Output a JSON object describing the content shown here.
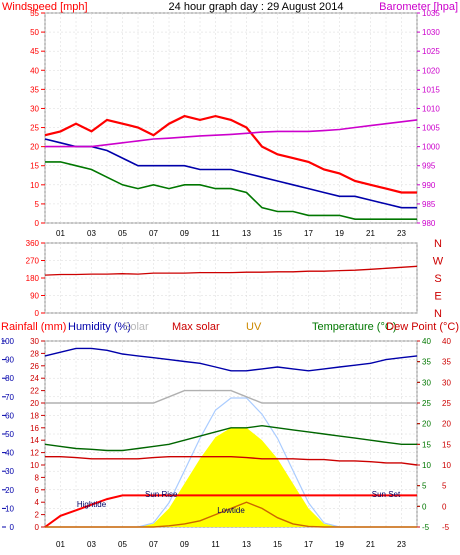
{
  "header": {
    "title": "24 hour graph day : 29 August 2014",
    "left_label": "Windspeed [mph]",
    "right_label": "Barometer [hpa]"
  },
  "x_ticks": [
    "01",
    "03",
    "05",
    "07",
    "09",
    "11",
    "13",
    "15",
    "17",
    "19",
    "21",
    "23"
  ],
  "colors": {
    "wind": "#ff0000",
    "avg_wind": "#0000aa",
    "wind_alt": "#007700",
    "barometer": "#cc00cc",
    "direction": "#cc0000",
    "rain": "#ff0000",
    "humidity": "#0000aa",
    "solar": "#b0b0b0",
    "max_solar": "#aaccff",
    "uv": "#cc6600",
    "temp": "#006600",
    "dew": "#cc0000",
    "solar_fill": "#ffff00",
    "rain_area": "#ff0000"
  },
  "chart_data": [
    {
      "type": "line",
      "title": "24 hour graph day : 29 August 2014",
      "ylabel": "Windspeed [mph]",
      "ylabel_right": "Barometer [hpa]",
      "ylim": [
        0,
        55
      ],
      "ylim_right": [
        980,
        1035
      ],
      "yticks": [
        0,
        5,
        10,
        15,
        20,
        25,
        30,
        35,
        40,
        45,
        50,
        55
      ],
      "yticks_right": [
        980,
        985,
        990,
        995,
        1000,
        1005,
        1010,
        1015,
        1020,
        1025,
        1030,
        1035
      ],
      "x": [
        0,
        1,
        2,
        3,
        4,
        5,
        6,
        7,
        8,
        9,
        10,
        11,
        12,
        13,
        14,
        15,
        16,
        17,
        18,
        19,
        20,
        21,
        22,
        23,
        24
      ],
      "series": [
        {
          "values": [
            23,
            24,
            26,
            24,
            27,
            26,
            25,
            23,
            26,
            28,
            27,
            28,
            27,
            25,
            20,
            18,
            17,
            16,
            14,
            13,
            11,
            10,
            9,
            8,
            8
          ]
        },
        {
          "values": [
            22,
            21,
            20,
            20,
            19,
            17,
            15,
            15,
            15,
            15,
            14,
            14,
            14,
            13,
            12,
            11,
            10,
            9,
            8,
            7,
            7,
            6,
            5,
            4,
            4
          ]
        },
        {
          "values": [
            16,
            16,
            15,
            14,
            12,
            10,
            9,
            10,
            9,
            10,
            10,
            9,
            9,
            8,
            4,
            3,
            3,
            2,
            2,
            2,
            1,
            1,
            1,
            1,
            1
          ]
        },
        {
          "values": [
            1000,
            1000,
            1000,
            1000,
            1000.5,
            1001,
            1001.5,
            1002,
            1002.2,
            1002.5,
            1002.8,
            1003,
            1003.2,
            1003.5,
            1003.8,
            1004,
            1004,
            1004,
            1004.2,
            1004.5,
            1005,
            1005.5,
            1006,
            1006.5,
            1007
          ]
        }
      ]
    },
    {
      "type": "line",
      "ylim": [
        0,
        360
      ],
      "yticks": [
        0,
        90,
        180,
        270,
        360
      ],
      "compass": [
        "N",
        "W",
        "S",
        "E",
        "N"
      ],
      "x": [
        0,
        1,
        2,
        3,
        4,
        5,
        6,
        7,
        8,
        9,
        10,
        11,
        12,
        13,
        14,
        15,
        16,
        17,
        18,
        19,
        20,
        21,
        22,
        23,
        24
      ],
      "series": [
        {
          "values": [
            195,
            198,
            198,
            200,
            200,
            202,
            200,
            205,
            205,
            205,
            208,
            208,
            208,
            210,
            210,
            212,
            212,
            215,
            215,
            218,
            220,
            225,
            230,
            235,
            240
          ]
        }
      ]
    },
    {
      "type": "line",
      "legend": [
        "Rainfall (mm)",
        "Humidity (%)",
        "Solar",
        "Max solar",
        "UV",
        "Temperature (°C)",
        "Dew Point (°C)"
      ],
      "ylim_rain": [
        0,
        100
      ],
      "yticks_rain": [
        0,
        10,
        20,
        30,
        40,
        50,
        60,
        70,
        80,
        90,
        100
      ],
      "ylim_humidity": [
        0,
        30
      ],
      "yticks_humidity": [
        0,
        2,
        4,
        6,
        8,
        10,
        12,
        14,
        16,
        18,
        20,
        22,
        24,
        26,
        28,
        30
      ],
      "ylim_temp": [
        -5,
        40
      ],
      "yticks_temp": [
        -5,
        0,
        5,
        10,
        15,
        20,
        25,
        30,
        35,
        40
      ],
      "yticks_dew": [
        -5,
        0,
        5,
        10,
        15,
        20,
        25,
        30,
        35,
        40
      ],
      "x": [
        0,
        1,
        2,
        3,
        4,
        5,
        6,
        7,
        8,
        9,
        10,
        11,
        12,
        13,
        14,
        15,
        16,
        17,
        18,
        19,
        20,
        21,
        22,
        23,
        24
      ],
      "series": [
        {
          "name": "Rainfall (mm)",
          "values": [
            0,
            6,
            9,
            12,
            15,
            17,
            17,
            17,
            17,
            17,
            17,
            17,
            17,
            17,
            17,
            17,
            17,
            17,
            17,
            17,
            17,
            17,
            17,
            17,
            17
          ]
        },
        {
          "name": "Humidity (%)",
          "values": [
            92,
            94,
            96,
            96,
            95,
            93,
            92,
            91,
            90,
            89,
            88,
            86,
            84,
            84,
            85,
            86,
            85,
            84,
            85,
            86,
            87,
            88,
            90,
            91,
            92
          ]
        },
        {
          "name": "Solar",
          "values": [
            20,
            20,
            20,
            20,
            20,
            20,
            20,
            20,
            21,
            22,
            22,
            22,
            22,
            21,
            20,
            20,
            20,
            20,
            20,
            20,
            20,
            20,
            20,
            20,
            20
          ]
        },
        {
          "name": "Max solar",
          "values": [
            0,
            0,
            0,
            0,
            0,
            0,
            0,
            0.5,
            3,
            7,
            11,
            14.5,
            16,
            16,
            14,
            11,
            7,
            3,
            0.5,
            0,
            0,
            0,
            0,
            0,
            0
          ]
        },
        {
          "name": "UV",
          "values": [
            0,
            0,
            0,
            0,
            0,
            0,
            0,
            0,
            0.2,
            0.5,
            1,
            2,
            3,
            4,
            3,
            1.5,
            0.5,
            0.1,
            0,
            0,
            0,
            0,
            0,
            0,
            0
          ]
        },
        {
          "name": "Temperature (°C)",
          "values": [
            15,
            14.5,
            14,
            13.8,
            13.5,
            13.5,
            14,
            14.5,
            15,
            16,
            17,
            18,
            19,
            19,
            19.5,
            19,
            18.5,
            18,
            17.5,
            17,
            16.5,
            16,
            15.5,
            15,
            15
          ]
        },
        {
          "name": "Dew Point (°C)",
          "values": [
            12,
            12,
            11.8,
            11.5,
            11.5,
            11.5,
            11.5,
            11.8,
            12,
            12,
            12,
            12,
            12,
            11.8,
            11.5,
            11.5,
            11.5,
            11.3,
            11.3,
            11,
            11,
            10.8,
            10.5,
            10.5,
            10
          ]
        }
      ],
      "annotations": [
        "Hightide",
        "Sun Rise",
        "Lowtide",
        "Sun Set"
      ]
    }
  ]
}
